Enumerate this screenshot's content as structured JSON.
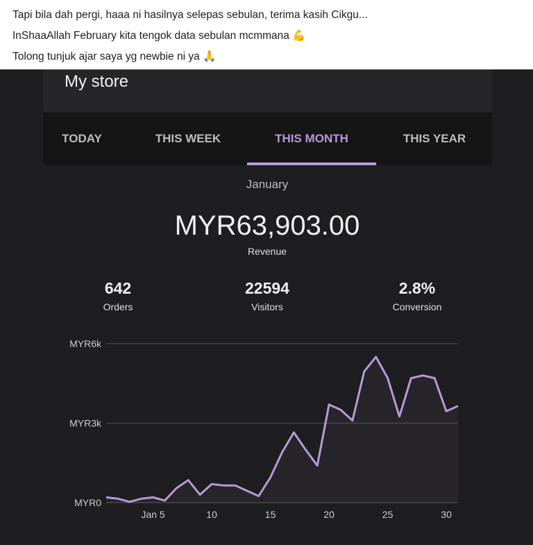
{
  "post": {
    "lines": [
      "Tapi bila dah pergi, haaa ni hasilnya selepas sebulan, terima kasih Cikgu...",
      "InShaaAllah February kita tengok data sebulan mcmmana 💪",
      "Tolong tunjuk ajar saya yg newbie ni ya 🙏"
    ]
  },
  "store": {
    "title": "My store"
  },
  "tabs": [
    {
      "label": "TODAY"
    },
    {
      "label": "THIS WEEK"
    },
    {
      "label": "THIS MONTH",
      "active": true
    },
    {
      "label": "THIS YEAR"
    }
  ],
  "period": "January",
  "revenue": {
    "value": "MYR63,903.00",
    "label": "Revenue"
  },
  "stats": [
    {
      "value": "642",
      "label": "Orders"
    },
    {
      "value": "22594",
      "label": "Visitors"
    },
    {
      "value": "2.8%",
      "label": "Conversion"
    }
  ],
  "colors": {
    "accent": "#b79ad8",
    "background": "#1e1d1f"
  },
  "chart_data": {
    "type": "area",
    "x": [
      1,
      2,
      3,
      4,
      5,
      6,
      7,
      8,
      9,
      10,
      11,
      12,
      13,
      14,
      15,
      16,
      17,
      18,
      19,
      20,
      21,
      22,
      23,
      24,
      25,
      26,
      27,
      28,
      29,
      30,
      31
    ],
    "values": [
      200,
      150,
      30,
      150,
      200,
      80,
      550,
      850,
      300,
      700,
      650,
      650,
      450,
      250,
      950,
      1900,
      2650,
      2000,
      1400,
      3700,
      3500,
      3100,
      4950,
      5500,
      4700,
      3250,
      4700,
      4800,
      4700,
      3450,
      3650
    ],
    "ylim": [
      0,
      6000
    ],
    "yticks": [
      {
        "value": 0,
        "label": "MYR0"
      },
      {
        "value": 3000,
        "label": "MYR3k"
      },
      {
        "value": 6000,
        "label": "MYR6k"
      }
    ],
    "xticks": [
      {
        "value": 5,
        "label": "Jan 5"
      },
      {
        "value": 10,
        "label": "10"
      },
      {
        "value": 15,
        "label": "15"
      },
      {
        "value": 20,
        "label": "20"
      },
      {
        "value": 25,
        "label": "25"
      },
      {
        "value": 30,
        "label": "30"
      }
    ],
    "grid": true
  }
}
